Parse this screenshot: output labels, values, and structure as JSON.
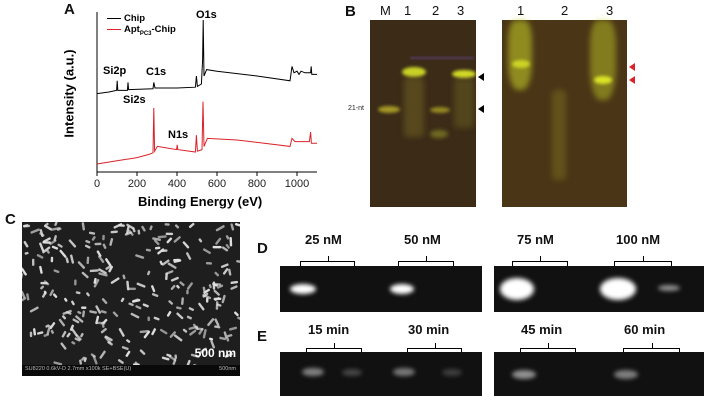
{
  "panels": {
    "a": "A",
    "b": "B",
    "c": "C",
    "d": "D",
    "e": "E"
  },
  "chart_data": {
    "type": "line",
    "title": "",
    "xlabel": "Binding Energy (eV)",
    "ylabel": "Intensity (a.u.)",
    "xlim": [
      0,
      1100
    ],
    "ylim": [
      0,
      100
    ],
    "xticks": [
      "0",
      "200",
      "400",
      "600",
      "800",
      "1000"
    ],
    "grid": false,
    "legend": "top-left",
    "series": [
      {
        "name": "Chip",
        "color": "#000000",
        "points": [
          [
            0,
            49
          ],
          [
            60,
            50
          ],
          [
            98,
            51
          ],
          [
            101,
            57
          ],
          [
            104,
            51
          ],
          [
            152,
            51
          ],
          [
            155,
            56
          ],
          [
            158,
            51.5
          ],
          [
            280,
            52
          ],
          [
            284,
            56
          ],
          [
            290,
            52.5
          ],
          [
            400,
            52.5
          ],
          [
            492,
            53
          ],
          [
            497,
            60
          ],
          [
            502,
            53.5
          ],
          [
            522,
            55
          ],
          [
            528,
            70
          ],
          [
            531,
            95
          ],
          [
            535,
            60
          ],
          [
            548,
            64
          ],
          [
            600,
            63
          ],
          [
            800,
            60
          ],
          [
            965,
            57
          ],
          [
            975,
            66
          ],
          [
            985,
            62
          ],
          [
            1000,
            63
          ],
          [
            1010,
            61
          ],
          [
            1020,
            63
          ],
          [
            1040,
            62
          ],
          [
            1068,
            62
          ],
          [
            1071,
            66
          ],
          [
            1074,
            61
          ],
          [
            1100,
            61
          ]
        ]
      },
      {
        "name": "Apt_PC3-Chip",
        "color": "#d9232a",
        "points": [
          [
            0,
            5
          ],
          [
            100,
            7
          ],
          [
            200,
            9
          ],
          [
            260,
            11
          ],
          [
            280,
            12
          ],
          [
            284,
            40
          ],
          [
            288,
            13
          ],
          [
            302,
            16
          ],
          [
            350,
            15
          ],
          [
            398,
            14
          ],
          [
            401,
            17
          ],
          [
            404,
            14
          ],
          [
            492,
            12.5
          ],
          [
            497,
            23
          ],
          [
            502,
            13
          ],
          [
            525,
            14
          ],
          [
            530,
            44
          ],
          [
            535,
            16
          ],
          [
            552,
            21
          ],
          [
            700,
            20
          ],
          [
            965,
            16
          ],
          [
            975,
            21
          ],
          [
            990,
            19
          ],
          [
            1062,
            19
          ],
          [
            1068,
            25
          ],
          [
            1072,
            18
          ],
          [
            1100,
            18
          ]
        ]
      }
    ],
    "annotations": [
      "O1s",
      "C1s",
      "Si2p",
      "Si2s",
      "N1s"
    ]
  },
  "legend": {
    "chip": "Chip",
    "apt_main": "Apt",
    "apt_sub": "PC3",
    "apt_suffix": "-Chip"
  },
  "gel_b": {
    "left_lanes": [
      "M",
      "1",
      "2",
      "3"
    ],
    "right_lanes": [
      "1",
      "2",
      "3"
    ],
    "marker": "21-nt",
    "arrow_color_black": "#000000",
    "arrow_color_red": "#d9232a"
  },
  "sem": {
    "scale": "500 nm",
    "info": "SU8220 0.6kV-D 2.7mm x100k SE+BSE(U)",
    "scale_small": "500nm"
  },
  "gel_d": {
    "conditions": [
      "25 nM",
      "50 nM",
      "75 nM",
      "100 nM"
    ]
  },
  "gel_e": {
    "conditions": [
      "15 min",
      "30 min",
      "45 min",
      "60 min"
    ]
  }
}
